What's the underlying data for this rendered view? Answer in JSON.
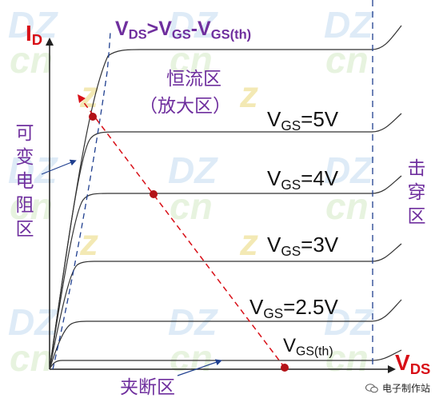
{
  "axes": {
    "y_label_main": "I",
    "y_label_sub": "D",
    "x_label_main": "V",
    "x_label_sub": "DS"
  },
  "boundary_label": {
    "p1": "V",
    "s1": "DS",
    "p2": ">V",
    "s2": "GS",
    "p3": "-V",
    "s3": "GS(th)"
  },
  "regions": {
    "constant_current_line1": "恒流区",
    "constant_current_line2": "（放大区）",
    "variable_resistance": [
      "可",
      "变",
      "电",
      "阻",
      "区"
    ],
    "breakdown": [
      "击",
      "穿",
      "区"
    ],
    "cutoff": "夹断区"
  },
  "curves": [
    {
      "prefix": "V",
      "sub": "GS",
      "value": "=5V"
    },
    {
      "prefix": "V",
      "sub": "GS",
      "value": "=4V"
    },
    {
      "prefix": "V",
      "sub": "GS",
      "value": "=3V"
    },
    {
      "prefix": "V",
      "sub": "GS",
      "value": "=2.5V"
    },
    {
      "prefix": "V",
      "sub": "GS(th)",
      "value": ""
    }
  ],
  "watermark": {
    "dz": "DZ",
    "cn": "cn",
    "z": "z"
  },
  "footer": {
    "text": "电子制作站"
  },
  "colors": {
    "purple": "#6f2f9e",
    "red": "#d80f17",
    "dashed_blue": "#1f3f8f",
    "curve": "#333333"
  }
}
